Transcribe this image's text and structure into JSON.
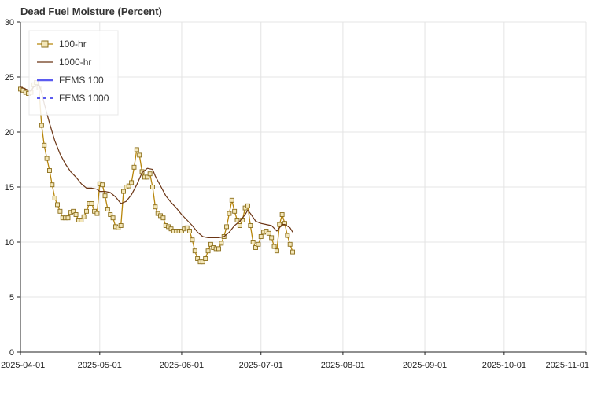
{
  "chart_data": {
    "type": "line",
    "title": "Dead Fuel Moisture (Percent)",
    "xlabel": "",
    "ylabel": "",
    "ylim": [
      0,
      30
    ],
    "yticks": [
      0,
      5,
      10,
      15,
      20,
      25,
      30
    ],
    "xlim": [
      "2025-04-01",
      "2025-11-01"
    ],
    "xticks": [
      "2025-04-01",
      "2025-05-01",
      "2025-06-01",
      "2025-07-01",
      "2025-08-01",
      "2025-09-01",
      "2025-10-01",
      "2025-11-01"
    ],
    "grid": true,
    "legend_position": "top-left",
    "series": [
      {
        "name": "100-hr",
        "color": "#b8860b",
        "marker": "square",
        "points": [
          [
            "2025-04-01",
            23.9
          ],
          [
            "2025-04-02",
            23.8
          ],
          [
            "2025-04-03",
            23.6
          ],
          [
            "2025-04-04",
            23.5
          ],
          [
            "2025-04-05",
            23.6
          ],
          [
            "2025-04-06",
            24.3
          ],
          [
            "2025-04-07",
            24.5
          ],
          [
            "2025-04-08",
            24.0
          ],
          [
            "2025-04-09",
            20.6
          ],
          [
            "2025-04-10",
            18.8
          ],
          [
            "2025-04-11",
            17.6
          ],
          [
            "2025-04-12",
            16.5
          ],
          [
            "2025-04-13",
            15.2
          ],
          [
            "2025-04-14",
            14.0
          ],
          [
            "2025-04-15",
            13.4
          ],
          [
            "2025-04-16",
            12.8
          ],
          [
            "2025-04-17",
            12.2
          ],
          [
            "2025-04-18",
            12.2
          ],
          [
            "2025-04-19",
            12.2
          ],
          [
            "2025-04-20",
            12.7
          ],
          [
            "2025-04-21",
            12.8
          ],
          [
            "2025-04-22",
            12.5
          ],
          [
            "2025-04-23",
            12.0
          ],
          [
            "2025-04-24",
            12.0
          ],
          [
            "2025-04-25",
            12.3
          ],
          [
            "2025-04-26",
            12.8
          ],
          [
            "2025-04-27",
            13.5
          ],
          [
            "2025-04-28",
            13.5
          ],
          [
            "2025-04-29",
            12.8
          ],
          [
            "2025-04-30",
            12.6
          ],
          [
            "2025-05-01",
            15.3
          ],
          [
            "2025-05-02",
            15.2
          ],
          [
            "2025-05-03",
            14.2
          ],
          [
            "2025-05-04",
            13.0
          ],
          [
            "2025-05-05",
            12.5
          ],
          [
            "2025-05-06",
            12.2
          ],
          [
            "2025-05-07",
            11.4
          ],
          [
            "2025-05-08",
            11.3
          ],
          [
            "2025-05-09",
            11.5
          ],
          [
            "2025-05-10",
            14.6
          ],
          [
            "2025-05-11",
            15.0
          ],
          [
            "2025-05-12",
            15.1
          ],
          [
            "2025-05-13",
            15.4
          ],
          [
            "2025-05-14",
            16.8
          ],
          [
            "2025-05-15",
            18.4
          ],
          [
            "2025-05-16",
            17.9
          ],
          [
            "2025-05-17",
            16.4
          ],
          [
            "2025-05-18",
            15.9
          ],
          [
            "2025-05-19",
            15.9
          ],
          [
            "2025-05-20",
            16.2
          ],
          [
            "2025-05-21",
            15.0
          ],
          [
            "2025-05-22",
            13.2
          ],
          [
            "2025-05-23",
            12.6
          ],
          [
            "2025-05-24",
            12.4
          ],
          [
            "2025-05-25",
            12.2
          ],
          [
            "2025-05-26",
            11.5
          ],
          [
            "2025-05-27",
            11.4
          ],
          [
            "2025-05-28",
            11.2
          ],
          [
            "2025-05-29",
            11.0
          ],
          [
            "2025-05-30",
            11.0
          ],
          [
            "2025-05-31",
            11.0
          ],
          [
            "2025-06-01",
            11.0
          ],
          [
            "2025-06-02",
            11.2
          ],
          [
            "2025-06-03",
            11.3
          ],
          [
            "2025-06-04",
            11.0
          ],
          [
            "2025-06-05",
            10.2
          ],
          [
            "2025-06-06",
            9.2
          ],
          [
            "2025-06-07",
            8.5
          ],
          [
            "2025-06-08",
            8.2
          ],
          [
            "2025-06-09",
            8.2
          ],
          [
            "2025-06-10",
            8.5
          ],
          [
            "2025-06-11",
            9.2
          ],
          [
            "2025-06-12",
            9.8
          ],
          [
            "2025-06-13",
            9.5
          ],
          [
            "2025-06-14",
            9.4
          ],
          [
            "2025-06-15",
            9.4
          ],
          [
            "2025-06-16",
            9.9
          ],
          [
            "2025-06-17",
            10.5
          ],
          [
            "2025-06-18",
            11.4
          ],
          [
            "2025-06-19",
            12.6
          ],
          [
            "2025-06-20",
            13.8
          ],
          [
            "2025-06-21",
            12.8
          ],
          [
            "2025-06-22",
            12.0
          ],
          [
            "2025-06-23",
            11.5
          ],
          [
            "2025-06-24",
            12.0
          ],
          [
            "2025-06-25",
            13.1
          ],
          [
            "2025-06-26",
            13.3
          ],
          [
            "2025-06-27",
            11.5
          ],
          [
            "2025-06-28",
            10.0
          ],
          [
            "2025-06-29",
            9.5
          ],
          [
            "2025-06-30",
            9.8
          ],
          [
            "2025-07-01",
            10.5
          ],
          [
            "2025-07-02",
            10.9
          ],
          [
            "2025-07-03",
            11.0
          ],
          [
            "2025-07-04",
            10.8
          ],
          [
            "2025-07-05",
            10.4
          ],
          [
            "2025-07-06",
            9.6
          ],
          [
            "2025-07-07",
            9.2
          ],
          [
            "2025-07-08",
            11.6
          ],
          [
            "2025-07-09",
            12.5
          ],
          [
            "2025-07-10",
            11.7
          ],
          [
            "2025-07-11",
            10.6
          ],
          [
            "2025-07-12",
            9.8
          ],
          [
            "2025-07-13",
            9.1
          ]
        ]
      },
      {
        "name": "1000-hr",
        "color": "#6b3515",
        "marker": "none",
        "points": [
          [
            "2025-04-01",
            24.1
          ],
          [
            "2025-04-03",
            23.9
          ],
          [
            "2025-04-05",
            23.7
          ],
          [
            "2025-04-06",
            24.1
          ],
          [
            "2025-04-08",
            24.3
          ],
          [
            "2025-04-09",
            23.6
          ],
          [
            "2025-04-10",
            22.6
          ],
          [
            "2025-04-12",
            20.8
          ],
          [
            "2025-04-14",
            19.2
          ],
          [
            "2025-04-16",
            18.0
          ],
          [
            "2025-04-18",
            17.1
          ],
          [
            "2025-04-20",
            16.4
          ],
          [
            "2025-04-22",
            15.9
          ],
          [
            "2025-04-24",
            15.3
          ],
          [
            "2025-04-26",
            14.9
          ],
          [
            "2025-04-28",
            14.9
          ],
          [
            "2025-04-30",
            14.8
          ],
          [
            "2025-05-01",
            14.6
          ],
          [
            "2025-05-03",
            14.6
          ],
          [
            "2025-05-05",
            14.5
          ],
          [
            "2025-05-07",
            14.1
          ],
          [
            "2025-05-09",
            13.5
          ],
          [
            "2025-05-11",
            13.7
          ],
          [
            "2025-05-13",
            14.3
          ],
          [
            "2025-05-15",
            15.2
          ],
          [
            "2025-05-17",
            16.3
          ],
          [
            "2025-05-19",
            16.7
          ],
          [
            "2025-05-21",
            16.6
          ],
          [
            "2025-05-22",
            16.0
          ],
          [
            "2025-05-24",
            15.1
          ],
          [
            "2025-05-26",
            14.2
          ],
          [
            "2025-05-28",
            13.6
          ],
          [
            "2025-05-30",
            13.1
          ],
          [
            "2025-06-01",
            12.5
          ],
          [
            "2025-06-03",
            12.0
          ],
          [
            "2025-06-05",
            11.5
          ],
          [
            "2025-06-07",
            10.9
          ],
          [
            "2025-06-09",
            10.5
          ],
          [
            "2025-06-11",
            10.4
          ],
          [
            "2025-06-13",
            10.4
          ],
          [
            "2025-06-15",
            10.4
          ],
          [
            "2025-06-17",
            10.5
          ],
          [
            "2025-06-19",
            10.9
          ],
          [
            "2025-06-21",
            11.5
          ],
          [
            "2025-06-23",
            11.9
          ],
          [
            "2025-06-25",
            12.5
          ],
          [
            "2025-06-26",
            12.9
          ],
          [
            "2025-06-27",
            12.6
          ],
          [
            "2025-06-29",
            11.9
          ],
          [
            "2025-07-01",
            11.7
          ],
          [
            "2025-07-03",
            11.6
          ],
          [
            "2025-07-05",
            11.5
          ],
          [
            "2025-07-07",
            11.0
          ],
          [
            "2025-07-09",
            11.6
          ],
          [
            "2025-07-10",
            11.6
          ],
          [
            "2025-07-12",
            11.3
          ],
          [
            "2025-07-13",
            10.9
          ]
        ]
      }
    ],
    "legend": [
      {
        "label": "100-hr",
        "style": "line-square",
        "color": "#b8860b"
      },
      {
        "label": "1000-hr",
        "style": "line",
        "color": "#6b3515"
      },
      {
        "label": "FEMS 100",
        "style": "line",
        "color": "#5b5bf0"
      },
      {
        "label": "FEMS 1000",
        "style": "dashed",
        "color": "#5b5bf0"
      }
    ]
  }
}
